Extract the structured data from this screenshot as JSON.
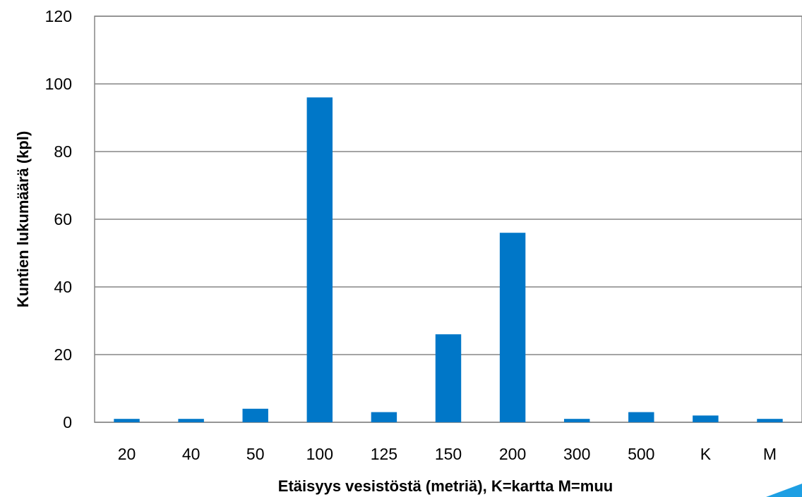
{
  "chart_data": {
    "type": "bar",
    "title": "",
    "xlabel": "Etäisyys vesistöstä (metriä), K=kartta M=muu",
    "ylabel": "Kuntien lukumäärä (kpl)",
    "categories": [
      "20",
      "40",
      "50",
      "100",
      "125",
      "150",
      "200",
      "300",
      "500",
      "K",
      "M"
    ],
    "values": [
      1,
      1,
      4,
      96,
      3,
      26,
      56,
      1,
      3,
      2,
      1
    ],
    "ylim": [
      0,
      120
    ],
    "yticks": [
      0,
      20,
      40,
      60,
      80,
      100,
      120
    ],
    "ytick_labels": [
      "0",
      "20",
      "40",
      "60",
      "80",
      "100",
      "120"
    ],
    "grid": true,
    "legend": "none",
    "colors": {
      "bar": "#0077C8",
      "grid": "#868686",
      "border": "#868686",
      "corner_accent": "#1E9FE3"
    }
  }
}
